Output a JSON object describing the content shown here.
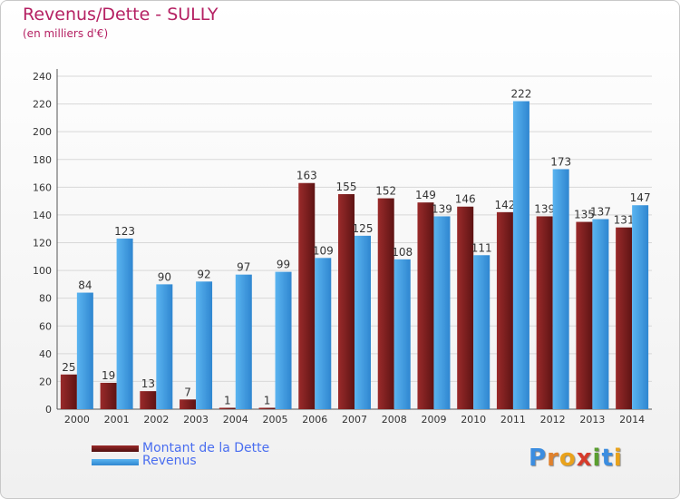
{
  "chart_data": {
    "type": "bar",
    "title": "Revenus/Dette - SULLY",
    "subtitle": "(en milliers d'€)",
    "categories": [
      "2000",
      "2001",
      "2002",
      "2003",
      "2004",
      "2005",
      "2006",
      "2007",
      "2008",
      "2009",
      "2010",
      "2011",
      "2012",
      "2013",
      "2014"
    ],
    "series": [
      {
        "name": "Montant de la Dette",
        "color": "#7b1f1f",
        "values": [
          25,
          19,
          13,
          7,
          1,
          1,
          163,
          155,
          152,
          149,
          146,
          142,
          139,
          135,
          131
        ]
      },
      {
        "name": "Revenus",
        "color": "#3f9fe6",
        "values": [
          84,
          123,
          90,
          92,
          97,
          99,
          109,
          125,
          108,
          139,
          111,
          222,
          173,
          137,
          147
        ]
      }
    ],
    "ylim": [
      0,
      240
    ],
    "yticks": [
      0,
      20,
      40,
      60,
      80,
      100,
      120,
      140,
      160,
      180,
      200,
      220,
      240
    ],
    "grid": true,
    "legend": "bottom-left"
  },
  "logo": {
    "letters": [
      "P",
      "r",
      "o",
      "x",
      "i",
      "t",
      "i"
    ],
    "colors": [
      "#3b8de0",
      "#e0812c",
      "#e9a21b",
      "#d63b2b",
      "#5a9e2f",
      "#3b8de0",
      "#e9a21b"
    ]
  }
}
